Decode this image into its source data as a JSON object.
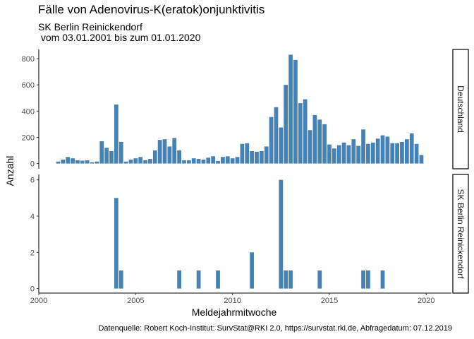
{
  "chart_data": {
    "type": "bar",
    "title": "Fälle von Adenovirus-K(eratok)onjunktivitis",
    "subtitle": "SK Berlin Reinickendorf\n vom 03.01.2001 bis zum 01.01.2020",
    "xlabel": "Meldejahrmitwoche",
    "ylabel": "Anzahl",
    "caption": "Datenquelle: Robert Koch-Institut: SurvStat@RKI 2.0, https://survstat.rki.de, Abfragedatum: 07.12.2019",
    "xlim": [
      2000,
      2021.3
    ],
    "x_ticks": [
      2000,
      2005,
      2010,
      2015,
      2020
    ],
    "bar_width_years": 0.21,
    "color": "#4682B4",
    "grid": false,
    "panels": [
      {
        "strip": "Deutschland",
        "ylim": [
          -40,
          870
        ],
        "y_ticks": [
          0,
          200,
          400,
          600,
          800
        ],
        "x": [
          2001.0,
          2001.25,
          2001.5,
          2001.75,
          2002.0,
          2002.25,
          2002.5,
          2002.75,
          2003.0,
          2003.25,
          2003.5,
          2003.75,
          2004.0,
          2004.25,
          2004.5,
          2004.75,
          2005.0,
          2005.25,
          2005.5,
          2005.75,
          2006.0,
          2006.25,
          2006.5,
          2006.75,
          2007.0,
          2007.25,
          2007.5,
          2007.75,
          2008.0,
          2008.25,
          2008.5,
          2008.75,
          2009.0,
          2009.25,
          2009.5,
          2009.75,
          2010.0,
          2010.25,
          2010.5,
          2010.75,
          2011.0,
          2011.25,
          2011.5,
          2011.75,
          2012.0,
          2012.25,
          2012.5,
          2012.75,
          2013.0,
          2013.25,
          2013.5,
          2013.75,
          2014.0,
          2014.25,
          2014.5,
          2014.75,
          2015.0,
          2015.25,
          2015.5,
          2015.75,
          2016.0,
          2016.25,
          2016.5,
          2016.75,
          2017.0,
          2017.25,
          2017.5,
          2017.75,
          2018.0,
          2018.25,
          2018.5,
          2018.75,
          2019.0,
          2019.25,
          2019.5,
          2019.75
        ],
        "values": [
          15,
          30,
          50,
          40,
          25,
          22,
          25,
          10,
          15,
          170,
          120,
          95,
          450,
          165,
          15,
          30,
          40,
          50,
          25,
          35,
          100,
          180,
          185,
          130,
          195,
          100,
          25,
          25,
          40,
          35,
          30,
          45,
          55,
          20,
          50,
          55,
          40,
          50,
          150,
          155,
          95,
          90,
          95,
          130,
          355,
          430,
          275,
          600,
          830,
          790,
          460,
          490,
          255,
          370,
          335,
          300,
          145,
          115,
          140,
          160,
          140,
          185,
          135,
          260,
          150,
          160,
          190,
          215,
          205,
          155,
          155,
          165,
          185,
          230,
          150,
          65
        ]
      },
      {
        "strip": "SK Berlin Reinickendorf",
        "ylim": [
          -0.25,
          6.3
        ],
        "y_ticks": [
          0,
          2,
          4,
          6
        ],
        "x": [
          2004.0,
          2004.25,
          2007.25,
          2008.25,
          2009.25,
          2011.0,
          2012.5,
          2012.75,
          2013.0,
          2014.5,
          2016.75,
          2017.0,
          2017.75
        ],
        "values": [
          5,
          1,
          1,
          1,
          1,
          2,
          6,
          1,
          1,
          1,
          1,
          1,
          1
        ]
      }
    ]
  }
}
